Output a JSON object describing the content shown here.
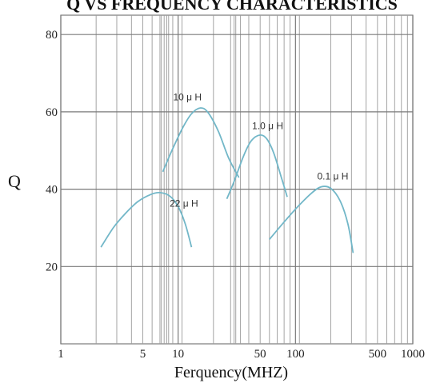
{
  "chart_data": {
    "type": "line",
    "title": "Q VS FREQUENCY CHARACTERISTICS",
    "xlabel": "Ferquency(MHZ)",
    "ylabel": "Q",
    "x_scale": "log",
    "xlim": [
      1,
      1000
    ],
    "ylim": [
      0,
      85
    ],
    "grid": true,
    "xticks": [
      {
        "value": 1,
        "label": "1"
      },
      {
        "value": 5,
        "label": "5"
      },
      {
        "value": 10,
        "label": "10"
      },
      {
        "value": 50,
        "label": "50"
      },
      {
        "value": 100,
        "label": "100"
      },
      {
        "value": 500,
        "label": "500"
      },
      {
        "value": 1000,
        "label": "1000"
      }
    ],
    "yticks": [
      {
        "value": 20,
        "label": "20"
      },
      {
        "value": 40,
        "label": "40"
      },
      {
        "value": 60,
        "label": "60"
      },
      {
        "value": 80,
        "label": "80"
      }
    ],
    "line_color": "#72b7c8",
    "series": [
      {
        "name": "10 μ H",
        "label_at": [
          12,
          63
        ],
        "points": [
          [
            7.4,
            44.5
          ],
          [
            9,
            50.5
          ],
          [
            11,
            56
          ],
          [
            13,
            59.5
          ],
          [
            15.5,
            61
          ],
          [
            18,
            59.8
          ],
          [
            22,
            55
          ],
          [
            27,
            48
          ],
          [
            33,
            43
          ]
        ]
      },
      {
        "name": "1.0 μ H",
        "label_at": [
          58,
          55.5
        ],
        "points": [
          [
            26,
            37.5
          ],
          [
            30,
            42
          ],
          [
            36,
            48.5
          ],
          [
            42,
            52.5
          ],
          [
            50,
            54
          ],
          [
            57,
            53
          ],
          [
            65,
            49.5
          ],
          [
            75,
            43.5
          ],
          [
            85,
            38
          ]
        ]
      },
      {
        "name": "0.1 μ H",
        "label_at": [
          208,
          42.5
        ],
        "points": [
          [
            60,
            27
          ],
          [
            80,
            31.5
          ],
          [
            105,
            35.5
          ],
          [
            135,
            38.8
          ],
          [
            165,
            40.6
          ],
          [
            200,
            40.2
          ],
          [
            240,
            37
          ],
          [
            280,
            31
          ],
          [
            310,
            23.5
          ]
        ]
      },
      {
        "name": "22 μ H",
        "label_at": [
          11.2,
          35.5
        ],
        "points": [
          [
            2.2,
            25
          ],
          [
            2.8,
            30
          ],
          [
            3.5,
            33.5
          ],
          [
            4.5,
            36.7
          ],
          [
            5.8,
            38.6
          ],
          [
            7,
            39.1
          ],
          [
            8.5,
            38.2
          ],
          [
            10,
            35.5
          ],
          [
            11.5,
            31
          ],
          [
            13,
            25
          ]
        ]
      }
    ]
  }
}
